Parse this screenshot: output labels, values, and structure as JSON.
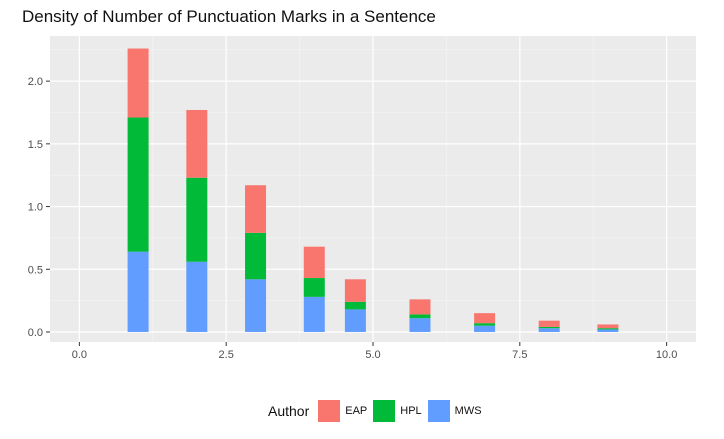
{
  "chart_data": {
    "type": "bar",
    "stacked": true,
    "title": "Density of Number of Punctuation Marks in a Sentence",
    "xlabel": "",
    "ylabel": "",
    "xlim": [
      -0.5,
      10.5
    ],
    "ylim": [
      -0.08,
      2.36
    ],
    "x_ticks": [
      0.0,
      2.5,
      5.0,
      7.5,
      10.0
    ],
    "x_tick_labels": [
      "0.0",
      "2.5",
      "5.0",
      "7.5",
      "10.0"
    ],
    "y_ticks": [
      0.0,
      0.5,
      1.0,
      1.5,
      2.0
    ],
    "y_tick_labels": [
      "0.0",
      "0.5",
      "1.0",
      "1.5",
      "2.0"
    ],
    "grid": true,
    "legend_placement": "bottom",
    "legend_title": "Author",
    "x": [
      1,
      2,
      3,
      4,
      4.7,
      5.8,
      6.9,
      8,
      9
    ],
    "series": [
      {
        "name": "MWS",
        "color": "#619CFF",
        "values": [
          0.64,
          0.56,
          0.42,
          0.28,
          0.18,
          0.11,
          0.05,
          0.03,
          0.02
        ]
      },
      {
        "name": "HPL",
        "color": "#00BA38",
        "values": [
          1.07,
          0.67,
          0.37,
          0.15,
          0.06,
          0.03,
          0.02,
          0.01,
          0.01
        ]
      },
      {
        "name": "EAP",
        "color": "#F8766D",
        "values": [
          0.55,
          0.54,
          0.38,
          0.25,
          0.18,
          0.12,
          0.08,
          0.05,
          0.03
        ]
      }
    ],
    "legend_order": [
      "EAP",
      "HPL",
      "MWS"
    ]
  }
}
